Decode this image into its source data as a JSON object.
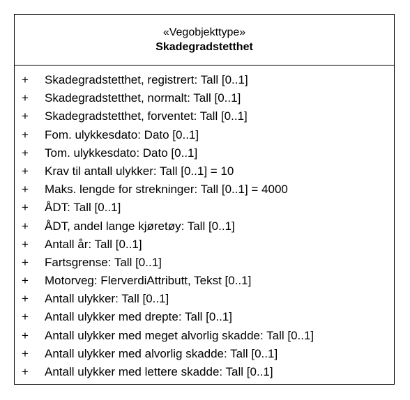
{
  "class": {
    "stereotype": "«Vegobjekttype»",
    "name": "Skadegradstetthet",
    "attributes": [
      {
        "visibility": "+",
        "text": "Skadegradstetthet, registrert: Tall [0..1]"
      },
      {
        "visibility": "+",
        "text": "Skadegradstetthet, normalt: Tall [0..1]"
      },
      {
        "visibility": "+",
        "text": "Skadegradstetthet, forventet: Tall [0..1]"
      },
      {
        "visibility": "+",
        "text": "Fom. ulykkesdato: Dato [0..1]"
      },
      {
        "visibility": "+",
        "text": "Tom. ulykkesdato: Dato [0..1]"
      },
      {
        "visibility": "+",
        "text": "Krav til antall ulykker: Tall [0..1] = 10"
      },
      {
        "visibility": "+",
        "text": "Maks. lengde for strekninger: Tall [0..1] = 4000"
      },
      {
        "visibility": "+",
        "text": "ÅDT: Tall [0..1]"
      },
      {
        "visibility": "+",
        "text": "ÅDT, andel lange kjøretøy: Tall [0..1]"
      },
      {
        "visibility": "+",
        "text": "Antall år: Tall [0..1]"
      },
      {
        "visibility": "+",
        "text": "Fartsgrense: Tall [0..1]"
      },
      {
        "visibility": "+",
        "text": "Motorveg: FlerverdiAttributt, Tekst [0..1]"
      },
      {
        "visibility": "+",
        "text": "Antall ulykker: Tall [0..1]"
      },
      {
        "visibility": "+",
        "text": "Antall ulykker med drepte: Tall [0..1]"
      },
      {
        "visibility": "+",
        "text": "Antall ulykker med meget alvorlig skadde: Tall [0..1]"
      },
      {
        "visibility": "+",
        "text": "Antall ulykker med alvorlig skadde: Tall [0..1]"
      },
      {
        "visibility": "+",
        "text": "Antall ulykker med lettere skadde: Tall [0..1]"
      }
    ]
  }
}
